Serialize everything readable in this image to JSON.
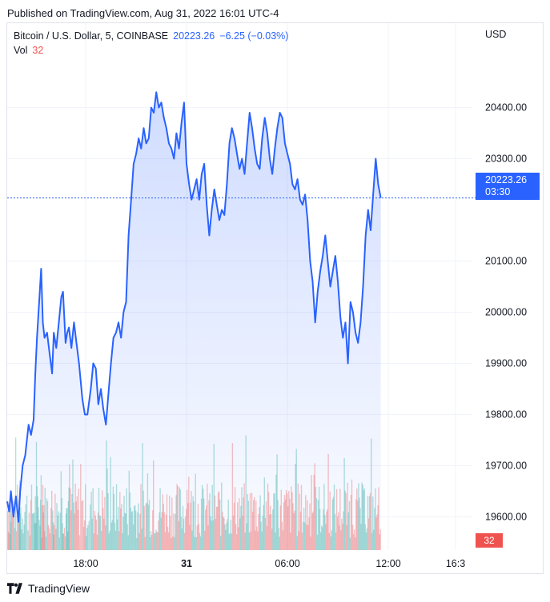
{
  "header": {
    "published": "Published on TradingView.com, Aug 31, 2022 16:01 UTC-4"
  },
  "legend": {
    "symbol": "Bitcoin / U.S. Dollar, 5, COINBASE",
    "last": "20223.26",
    "change": "−6.25 (−0.03%)",
    "vol_label": "Vol",
    "vol_value": "32"
  },
  "axis": {
    "currency": "USD"
  },
  "price_badge": {
    "price": "20223.26",
    "countdown": "03:30"
  },
  "vol_badge": "32",
  "footer": {
    "brand": "TradingView"
  },
  "colors": {
    "line": "#2962ff",
    "up": "#26a69a",
    "down": "#ef5350"
  },
  "chart_data": {
    "type": "area",
    "ylabel": "USD",
    "ylim": [
      19535,
      20565
    ],
    "y_ticks": [
      19600,
      19700,
      19800,
      19900,
      20000,
      20100,
      20300,
      20400
    ],
    "y_tick_labels": [
      "19600.00",
      "19700.00",
      "19800.00",
      "19900.00",
      "20000.00",
      "20100.00",
      "20300.00",
      "20400.00"
    ],
    "x_ticks": [
      {
        "t": 18.0,
        "label": "18:00"
      },
      {
        "t": 24.0,
        "label": "31"
      },
      {
        "t": 30.0,
        "label": "06:00"
      },
      {
        "t": 36.0,
        "label": "12:00"
      },
      {
        "t": 40.0,
        "label": "16:3"
      }
    ],
    "xlim": [
      13.33,
      41.0
    ],
    "last_price": 20223.26,
    "series": [
      {
        "values": [
          [
            13.33,
            19630
          ],
          [
            13.45,
            19610
          ],
          [
            13.55,
            19650
          ],
          [
            13.7,
            19600
          ],
          [
            13.85,
            19640
          ],
          [
            14.0,
            19590
          ],
          [
            14.1,
            19650
          ],
          [
            14.25,
            19700
          ],
          [
            14.4,
            19720
          ],
          [
            14.6,
            19780
          ],
          [
            14.75,
            19760
          ],
          [
            14.9,
            19790
          ],
          [
            15.0,
            19880
          ],
          [
            15.1,
            19950
          ],
          [
            15.25,
            20030
          ],
          [
            15.35,
            20085
          ],
          [
            15.45,
            19980
          ],
          [
            15.55,
            19950
          ],
          [
            15.7,
            19960
          ],
          [
            15.85,
            19920
          ],
          [
            16.0,
            19880
          ],
          [
            16.1,
            19960
          ],
          [
            16.25,
            19930
          ],
          [
            16.4,
            19980
          ],
          [
            16.55,
            20030
          ],
          [
            16.65,
            20040
          ],
          [
            16.8,
            19940
          ],
          [
            16.9,
            19960
          ],
          [
            17.0,
            19970
          ],
          [
            17.15,
            19930
          ],
          [
            17.3,
            19980
          ],
          [
            17.45,
            19940
          ],
          [
            17.6,
            19900
          ],
          [
            17.8,
            19830
          ],
          [
            17.95,
            19800
          ],
          [
            18.1,
            19800
          ],
          [
            18.3,
            19850
          ],
          [
            18.45,
            19900
          ],
          [
            18.6,
            19890
          ],
          [
            18.75,
            19820
          ],
          [
            18.9,
            19850
          ],
          [
            19.05,
            19810
          ],
          [
            19.2,
            19780
          ],
          [
            19.35,
            19840
          ],
          [
            19.5,
            19900
          ],
          [
            19.65,
            19950
          ],
          [
            19.8,
            19960
          ],
          [
            19.95,
            19980
          ],
          [
            20.1,
            19950
          ],
          [
            20.25,
            20000
          ],
          [
            20.4,
            20020
          ],
          [
            20.55,
            20150
          ],
          [
            20.7,
            20220
          ],
          [
            20.85,
            20290
          ],
          [
            21.0,
            20310
          ],
          [
            21.15,
            20340
          ],
          [
            21.3,
            20320
          ],
          [
            21.45,
            20360
          ],
          [
            21.6,
            20330
          ],
          [
            21.75,
            20340
          ],
          [
            21.9,
            20400
          ],
          [
            22.05,
            20390
          ],
          [
            22.2,
            20430
          ],
          [
            22.35,
            20400
          ],
          [
            22.5,
            20410
          ],
          [
            22.65,
            20380
          ],
          [
            22.8,
            20360
          ],
          [
            22.95,
            20330
          ],
          [
            23.1,
            20320
          ],
          [
            23.25,
            20300
          ],
          [
            23.4,
            20350
          ],
          [
            23.55,
            20320
          ],
          [
            23.7,
            20370
          ],
          [
            23.85,
            20410
          ],
          [
            24.0,
            20290
          ],
          [
            24.15,
            20250
          ],
          [
            24.3,
            20220
          ],
          [
            24.45,
            20240
          ],
          [
            24.6,
            20260
          ],
          [
            24.75,
            20220
          ],
          [
            24.9,
            20270
          ],
          [
            25.05,
            20290
          ],
          [
            25.2,
            20210
          ],
          [
            25.35,
            20150
          ],
          [
            25.5,
            20200
          ],
          [
            25.65,
            20240
          ],
          [
            25.8,
            20210
          ],
          [
            25.95,
            20180
          ],
          [
            26.1,
            20200
          ],
          [
            26.25,
            20190
          ],
          [
            26.4,
            20250
          ],
          [
            26.55,
            20330
          ],
          [
            26.7,
            20360
          ],
          [
            26.85,
            20340
          ],
          [
            27.0,
            20310
          ],
          [
            27.15,
            20280
          ],
          [
            27.3,
            20300
          ],
          [
            27.45,
            20270
          ],
          [
            27.6,
            20330
          ],
          [
            27.75,
            20390
          ],
          [
            27.9,
            20360
          ],
          [
            28.05,
            20320
          ],
          [
            28.2,
            20290
          ],
          [
            28.35,
            20280
          ],
          [
            28.5,
            20340
          ],
          [
            28.65,
            20380
          ],
          [
            28.8,
            20350
          ],
          [
            28.95,
            20300
          ],
          [
            29.1,
            20270
          ],
          [
            29.25,
            20320
          ],
          [
            29.4,
            20360
          ],
          [
            29.55,
            20390
          ],
          [
            29.7,
            20380
          ],
          [
            29.85,
            20330
          ],
          [
            30.0,
            20310
          ],
          [
            30.15,
            20290
          ],
          [
            30.3,
            20250
          ],
          [
            30.45,
            20240
          ],
          [
            30.6,
            20260
          ],
          [
            30.75,
            20220
          ],
          [
            30.9,
            20210
          ],
          [
            31.05,
            20230
          ],
          [
            31.2,
            20180
          ],
          [
            31.35,
            20100
          ],
          [
            31.5,
            20060
          ],
          [
            31.65,
            19980
          ],
          [
            31.8,
            20040
          ],
          [
            31.95,
            20080
          ],
          [
            32.1,
            20110
          ],
          [
            32.25,
            20150
          ],
          [
            32.4,
            20100
          ],
          [
            32.55,
            20050
          ],
          [
            32.7,
            20080
          ],
          [
            32.85,
            20110
          ],
          [
            33.0,
            20060
          ],
          [
            33.15,
            19990
          ],
          [
            33.3,
            19950
          ],
          [
            33.45,
            19980
          ],
          [
            33.6,
            19900
          ],
          [
            33.75,
            20020
          ],
          [
            33.9,
            20000
          ],
          [
            34.05,
            19960
          ],
          [
            34.2,
            19940
          ],
          [
            34.35,
            19980
          ],
          [
            34.5,
            20050
          ],
          [
            34.65,
            20150
          ],
          [
            34.8,
            20200
          ],
          [
            34.95,
            20160
          ],
          [
            35.1,
            20230
          ],
          [
            35.25,
            20300
          ],
          [
            35.4,
            20250
          ],
          [
            35.55,
            20223.26
          ]
        ]
      }
    ]
  }
}
